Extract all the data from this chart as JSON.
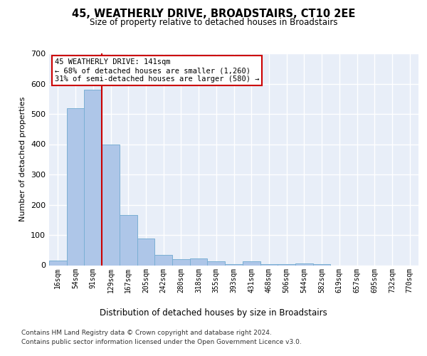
{
  "title_line1": "45, WEATHERLY DRIVE, BROADSTAIRS, CT10 2EE",
  "title_line2": "Size of property relative to detached houses in Broadstairs",
  "xlabel": "Distribution of detached houses by size in Broadstairs",
  "ylabel": "Number of detached properties",
  "bar_labels": [
    "16sqm",
    "54sqm",
    "91sqm",
    "129sqm",
    "167sqm",
    "205sqm",
    "242sqm",
    "280sqm",
    "318sqm",
    "355sqm",
    "393sqm",
    "431sqm",
    "468sqm",
    "506sqm",
    "544sqm",
    "582sqm",
    "619sqm",
    "657sqm",
    "695sqm",
    "732sqm",
    "770sqm"
  ],
  "bar_values": [
    15,
    520,
    580,
    400,
    165,
    88,
    33,
    20,
    22,
    12,
    3,
    12,
    3,
    3,
    5,
    3,
    0,
    0,
    0,
    0,
    0
  ],
  "bar_color": "#aec6e8",
  "bar_edge_color": "#7bafd4",
  "ylim": [
    0,
    700
  ],
  "yticks": [
    0,
    100,
    200,
    300,
    400,
    500,
    600,
    700
  ],
  "vline_index": 2.5,
  "vline_color": "#cc0000",
  "annotation_text": "45 WEATHERLY DRIVE: 141sqm\n← 68% of detached houses are smaller (1,260)\n31% of semi-detached houses are larger (580) →",
  "annotation_box_color": "#ffffff",
  "annotation_box_edge": "#cc0000",
  "background_color": "#e8eef8",
  "footer_line1": "Contains HM Land Registry data © Crown copyright and database right 2024.",
  "footer_line2": "Contains public sector information licensed under the Open Government Licence v3.0.",
  "grid_color": "#ffffff",
  "fig_bg": "#ffffff"
}
